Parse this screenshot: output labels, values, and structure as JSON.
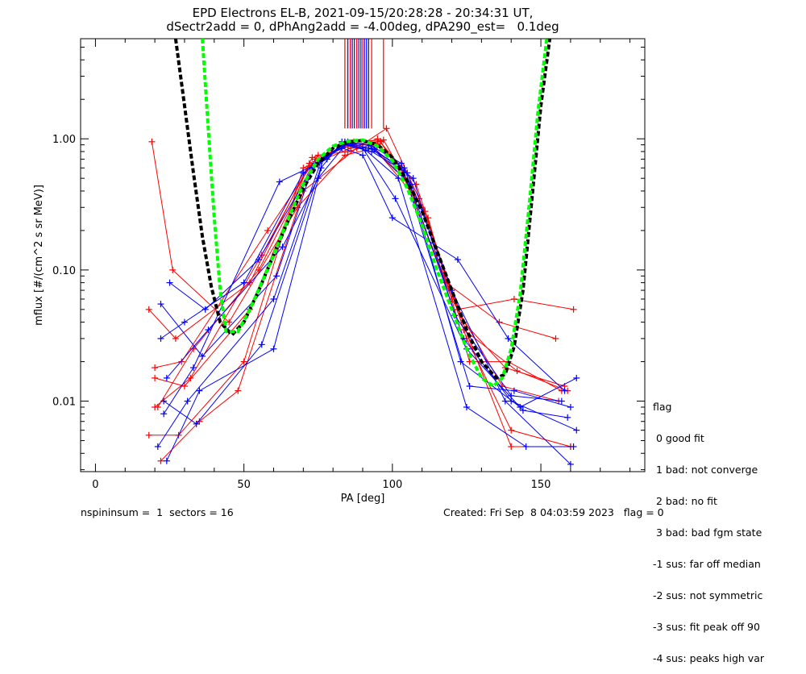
{
  "title_line1": "EPD Electrons EL-B, 2021-09-15/20:28:28 - 20:34:31 UT,",
  "title_line2": "dSectr2add = 0, dPhAng2add = -4.00deg, dPA290_est=   0.1deg",
  "legend": {
    "heading": "flag",
    "items": [
      " 0 good fit",
      " 1 bad: not converge",
      " 2 bad: no fit",
      " 3 bad: bad fgm state",
      "-1 sus: far off median",
      "-2 sus: not symmetric",
      "-3 sus: fit peak off 90",
      "-4 sus: peaks high var"
    ]
  },
  "footer": {
    "left": "nspininsum =  1  sectors = 16",
    "right": "Created: Fri Sep  8 04:03:59 2023   flag = 0"
  },
  "colors": {
    "red": "#ff0000",
    "blue": "#0000ff",
    "black": "#000000",
    "green": "#00ff00"
  },
  "chart_data": {
    "type": "line",
    "xlabel": "PA [deg]",
    "ylabel": "mflux [#/(cm^2 s sr MeV)]",
    "xlim": [
      -5,
      185
    ],
    "ylim": [
      0.0029,
      5.8
    ],
    "yscale": "log",
    "x_ticks": [
      0,
      50,
      100,
      150
    ],
    "y_ticks": [
      {
        "value": 1.0,
        "label": "1.00"
      },
      {
        "value": 0.1,
        "label": "0.10"
      },
      {
        "value": 0.01,
        "label": "0.01"
      }
    ],
    "series": [
      {
        "color": "red",
        "x": [
          18,
          28,
          50,
          70,
          86,
          95,
          108,
          125,
          140,
          160
        ],
        "values": [
          0.0055,
          0.0055,
          0.02,
          0.6,
          0.85,
          1.0,
          0.45,
          0.03,
          0.006,
          0.0045
        ]
      },
      {
        "color": "red",
        "x": [
          20,
          30,
          52,
          72,
          86,
          96,
          110,
          124,
          138,
          158
        ],
        "values": [
          0.015,
          0.013,
          0.05,
          0.65,
          0.9,
          0.95,
          0.3,
          0.04,
          0.018,
          0.013
        ]
      },
      {
        "color": "red",
        "x": [
          19,
          26,
          45,
          68,
          84,
          94,
          104,
          122,
          141,
          161
        ],
        "values": [
          0.95,
          0.1,
          0.04,
          0.3,
          0.75,
          0.85,
          0.5,
          0.05,
          0.06,
          0.05
        ]
      },
      {
        "color": "red",
        "x": [
          21,
          33,
          55,
          74,
          87,
          97,
          112,
          126,
          139,
          157
        ],
        "values": [
          0.009,
          0.025,
          0.1,
          0.7,
          0.95,
          0.98,
          0.25,
          0.02,
          0.02,
          0.012
        ]
      },
      {
        "color": "red",
        "x": [
          20,
          29,
          58,
          75,
          85,
          93,
          106,
          120,
          137,
          156
        ],
        "values": [
          0.018,
          0.02,
          0.2,
          0.75,
          0.8,
          0.9,
          0.4,
          0.06,
          0.013,
          0.01
        ]
      },
      {
        "color": "red",
        "x": [
          22,
          35,
          48,
          70,
          88,
          98,
          109,
          127,
          140,
          160
        ],
        "values": [
          0.0035,
          0.007,
          0.012,
          0.4,
          0.85,
          1.2,
          0.35,
          0.025,
          0.0045,
          0.0045
        ]
      },
      {
        "color": "red",
        "x": [
          18,
          27,
          52,
          73,
          86,
          95,
          103,
          118,
          136,
          155
        ],
        "values": [
          0.05,
          0.03,
          0.08,
          0.72,
          0.88,
          0.92,
          0.6,
          0.08,
          0.04,
          0.03
        ]
      },
      {
        "color": "red",
        "x": [
          20,
          32,
          56,
          72,
          85,
          96,
          111,
          124,
          142,
          159
        ],
        "values": [
          0.009,
          0.015,
          0.13,
          0.62,
          0.9,
          0.96,
          0.28,
          0.035,
          0.017,
          0.012
        ]
      },
      {
        "color": "blue",
        "x": [
          24,
          35,
          60,
          76,
          83,
          92,
          104,
          124,
          140,
          162
        ],
        "values": [
          0.0035,
          0.012,
          0.025,
          0.6,
          0.95,
          0.85,
          0.6,
          0.03,
          0.01,
          0.006
        ]
      },
      {
        "color": "blue",
        "x": [
          22,
          30,
          50,
          70,
          84,
          93,
          105,
          120,
          138,
          160
        ],
        "values": [
          0.03,
          0.04,
          0.08,
          0.55,
          0.9,
          0.8,
          0.55,
          0.07,
          0.01,
          0.0033
        ]
      },
      {
        "color": "blue",
        "x": [
          23,
          33,
          62,
          78,
          84,
          91,
          102,
          125,
          145,
          161
        ],
        "values": [
          0.008,
          0.018,
          0.47,
          0.7,
          0.95,
          0.82,
          0.5,
          0.009,
          0.0045,
          0.0045
        ]
      },
      {
        "color": "blue",
        "x": [
          25,
          37,
          55,
          74,
          83,
          90,
          100,
          122,
          139,
          158
        ],
        "values": [
          0.08,
          0.05,
          0.12,
          0.65,
          0.85,
          0.75,
          0.25,
          0.12,
          0.03,
          0.012
        ]
      },
      {
        "color": "blue",
        "x": [
          21,
          31,
          60,
          76,
          84,
          92,
          106,
          123,
          143,
          162
        ],
        "values": [
          0.0045,
          0.01,
          0.06,
          0.68,
          0.93,
          0.9,
          0.45,
          0.02,
          0.009,
          0.015
        ]
      },
      {
        "color": "blue",
        "x": [
          24,
          38,
          63,
          75,
          85,
          93,
          103,
          126,
          141,
          160
        ],
        "values": [
          0.015,
          0.035,
          0.15,
          0.5,
          0.95,
          0.88,
          0.65,
          0.013,
          0.012,
          0.009
        ]
      },
      {
        "color": "blue",
        "x": [
          23,
          34,
          56,
          77,
          84,
          90,
          101,
          125,
          144,
          159
        ],
        "values": [
          0.01,
          0.0067,
          0.027,
          0.72,
          0.92,
          0.85,
          0.35,
          0.025,
          0.0085,
          0.0075
        ]
      },
      {
        "color": "blue",
        "x": [
          22,
          36,
          61,
          73,
          84,
          94,
          107,
          121,
          140,
          157
        ],
        "values": [
          0.055,
          0.022,
          0.09,
          0.6,
          0.9,
          0.83,
          0.5,
          0.045,
          0.011,
          0.01
        ]
      }
    ],
    "fits": [
      {
        "color": "black",
        "x": [
          27,
          30,
          33,
          36,
          39,
          42,
          46,
          50,
          55,
          60,
          65,
          70,
          75,
          80,
          85,
          90,
          95,
          100,
          105,
          110,
          115,
          120,
          125,
          130,
          135,
          138,
          141,
          144,
          147,
          150,
          153
        ],
        "values": [
          5.8,
          1.8,
          0.55,
          0.18,
          0.075,
          0.04,
          0.032,
          0.04,
          0.07,
          0.13,
          0.24,
          0.42,
          0.65,
          0.85,
          0.95,
          0.97,
          0.9,
          0.72,
          0.48,
          0.28,
          0.14,
          0.07,
          0.035,
          0.02,
          0.015,
          0.016,
          0.026,
          0.07,
          0.35,
          1.8,
          5.8
        ]
      },
      {
        "color": "green",
        "x": [
          36,
          38,
          40,
          42,
          44,
          48,
          52,
          56,
          60,
          65,
          70,
          75,
          80,
          85,
          90,
          95,
          100,
          105,
          110,
          115,
          120,
          125,
          130,
          134,
          137,
          140,
          143,
          146,
          149,
          152
        ],
        "values": [
          5.8,
          1.2,
          0.25,
          0.07,
          0.034,
          0.034,
          0.05,
          0.08,
          0.13,
          0.25,
          0.45,
          0.7,
          0.88,
          0.96,
          0.98,
          0.88,
          0.68,
          0.42,
          0.22,
          0.1,
          0.05,
          0.025,
          0.015,
          0.013,
          0.015,
          0.025,
          0.065,
          0.3,
          1.6,
          5.8
        ]
      }
    ],
    "markers_top": {
      "lines": [
        {
          "x": 84,
          "color": "red"
        },
        {
          "x": 85,
          "color": "blue"
        },
        {
          "x": 85.8,
          "color": "red"
        },
        {
          "x": 86.5,
          "color": "blue"
        },
        {
          "x": 87.2,
          "color": "blue"
        },
        {
          "x": 88,
          "color": "red"
        },
        {
          "x": 88.7,
          "color": "blue"
        },
        {
          "x": 89.4,
          "color": "blue"
        },
        {
          "x": 90,
          "color": "red"
        },
        {
          "x": 90.6,
          "color": "blue"
        },
        {
          "x": 91.3,
          "color": "blue"
        },
        {
          "x": 92,
          "color": "blue"
        },
        {
          "x": 93,
          "color": "red"
        },
        {
          "x": 97,
          "color": "red"
        }
      ],
      "from_value": 1.2
    }
  }
}
